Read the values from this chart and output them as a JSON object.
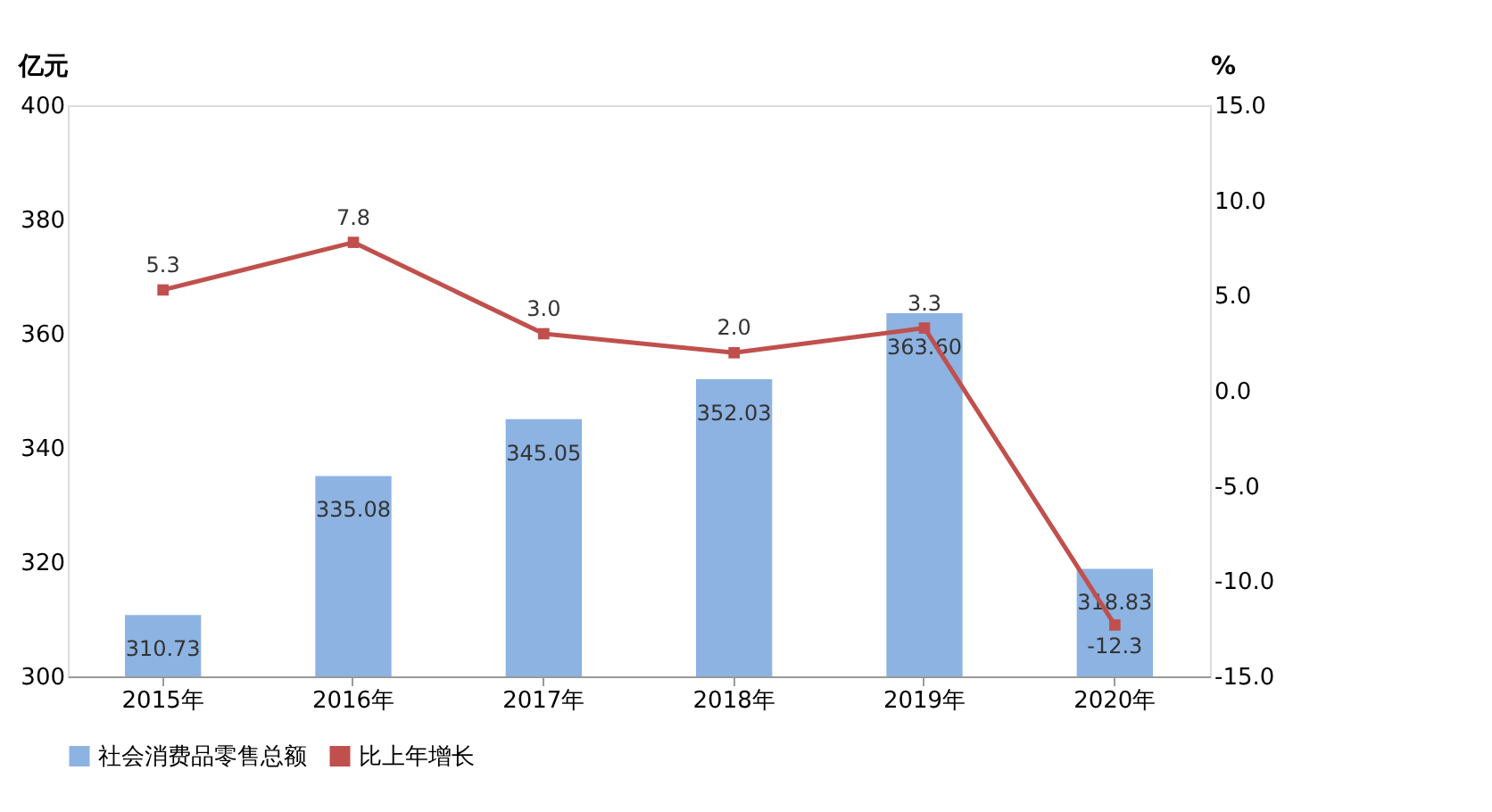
{
  "chart_data": {
    "type": "bar",
    "ylabel": "亿元",
    "y2label": "%",
    "categories": [
      "2015年",
      "2016年",
      "2017年",
      "2018年",
      "2019年",
      "2020年"
    ],
    "series": [
      {
        "name": "社会消费品零售总额",
        "color": "#8db3e2",
        "values": [
          310.73,
          335.08,
          345.05,
          352.03,
          363.6,
          318.83
        ],
        "value_labels": [
          "310.73",
          "335.08",
          "345.05",
          "352.03",
          "363.60",
          "318.83"
        ]
      },
      {
        "name": "比上年增长",
        "type": "line",
        "axis": "y2",
        "color": "#c0504d",
        "marker": "square",
        "values": [
          5.3,
          7.8,
          3.0,
          2.0,
          3.3,
          -12.3
        ],
        "value_labels": [
          "5.3",
          "7.8",
          "3.0",
          "2.0",
          "3.3",
          "-12.3"
        ]
      }
    ],
    "ylim": [
      300,
      400
    ],
    "yticks": [
      300,
      320,
      340,
      360,
      380,
      400
    ],
    "y2lim": [
      -15,
      15
    ],
    "y2ticks": [
      {
        "value": -15,
        "label": "-15.0"
      },
      {
        "value": -10,
        "label": "-10.0"
      },
      {
        "value": -5,
        "label": "-5.0"
      },
      {
        "value": 0,
        "label": "0.0"
      },
      {
        "value": 5,
        "label": "5.0"
      },
      {
        "value": 10,
        "label": "10.0"
      },
      {
        "value": 15,
        "label": "15.0"
      }
    ],
    "grid": false,
    "legend": "bottom"
  }
}
